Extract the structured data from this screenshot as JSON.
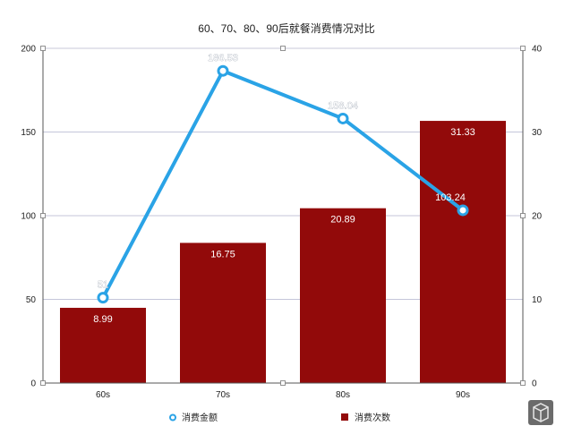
{
  "chart_data": {
    "type": "bar",
    "title": "60、70、80、90后就餐消费情况对比",
    "categories": [
      "60s",
      "70s",
      "80s",
      "90s"
    ],
    "series": [
      {
        "name": "消费次数",
        "kind": "bar",
        "axis": "right",
        "color": "#920a0a",
        "values": [
          8.99,
          16.75,
          20.89,
          31.33
        ],
        "labels": [
          "8.99",
          "16.75",
          "20.89",
          "31.33"
        ]
      },
      {
        "name": "消费金额",
        "kind": "line",
        "axis": "left",
        "color": "#2aa3e6",
        "values": [
          51,
          186.53,
          158.04,
          103.24
        ],
        "labels": [
          "51",
          "186.53",
          "158.04",
          "103.24"
        ]
      }
    ],
    "left_axis": {
      "min": 0,
      "max": 200,
      "ticks": [
        "0",
        "50",
        "100",
        "150",
        "200"
      ]
    },
    "right_axis": {
      "min": 0,
      "max": 40,
      "ticks": [
        "0",
        "10",
        "20",
        "30",
        "40"
      ]
    },
    "grid": true,
    "legend_position": "bottom"
  }
}
